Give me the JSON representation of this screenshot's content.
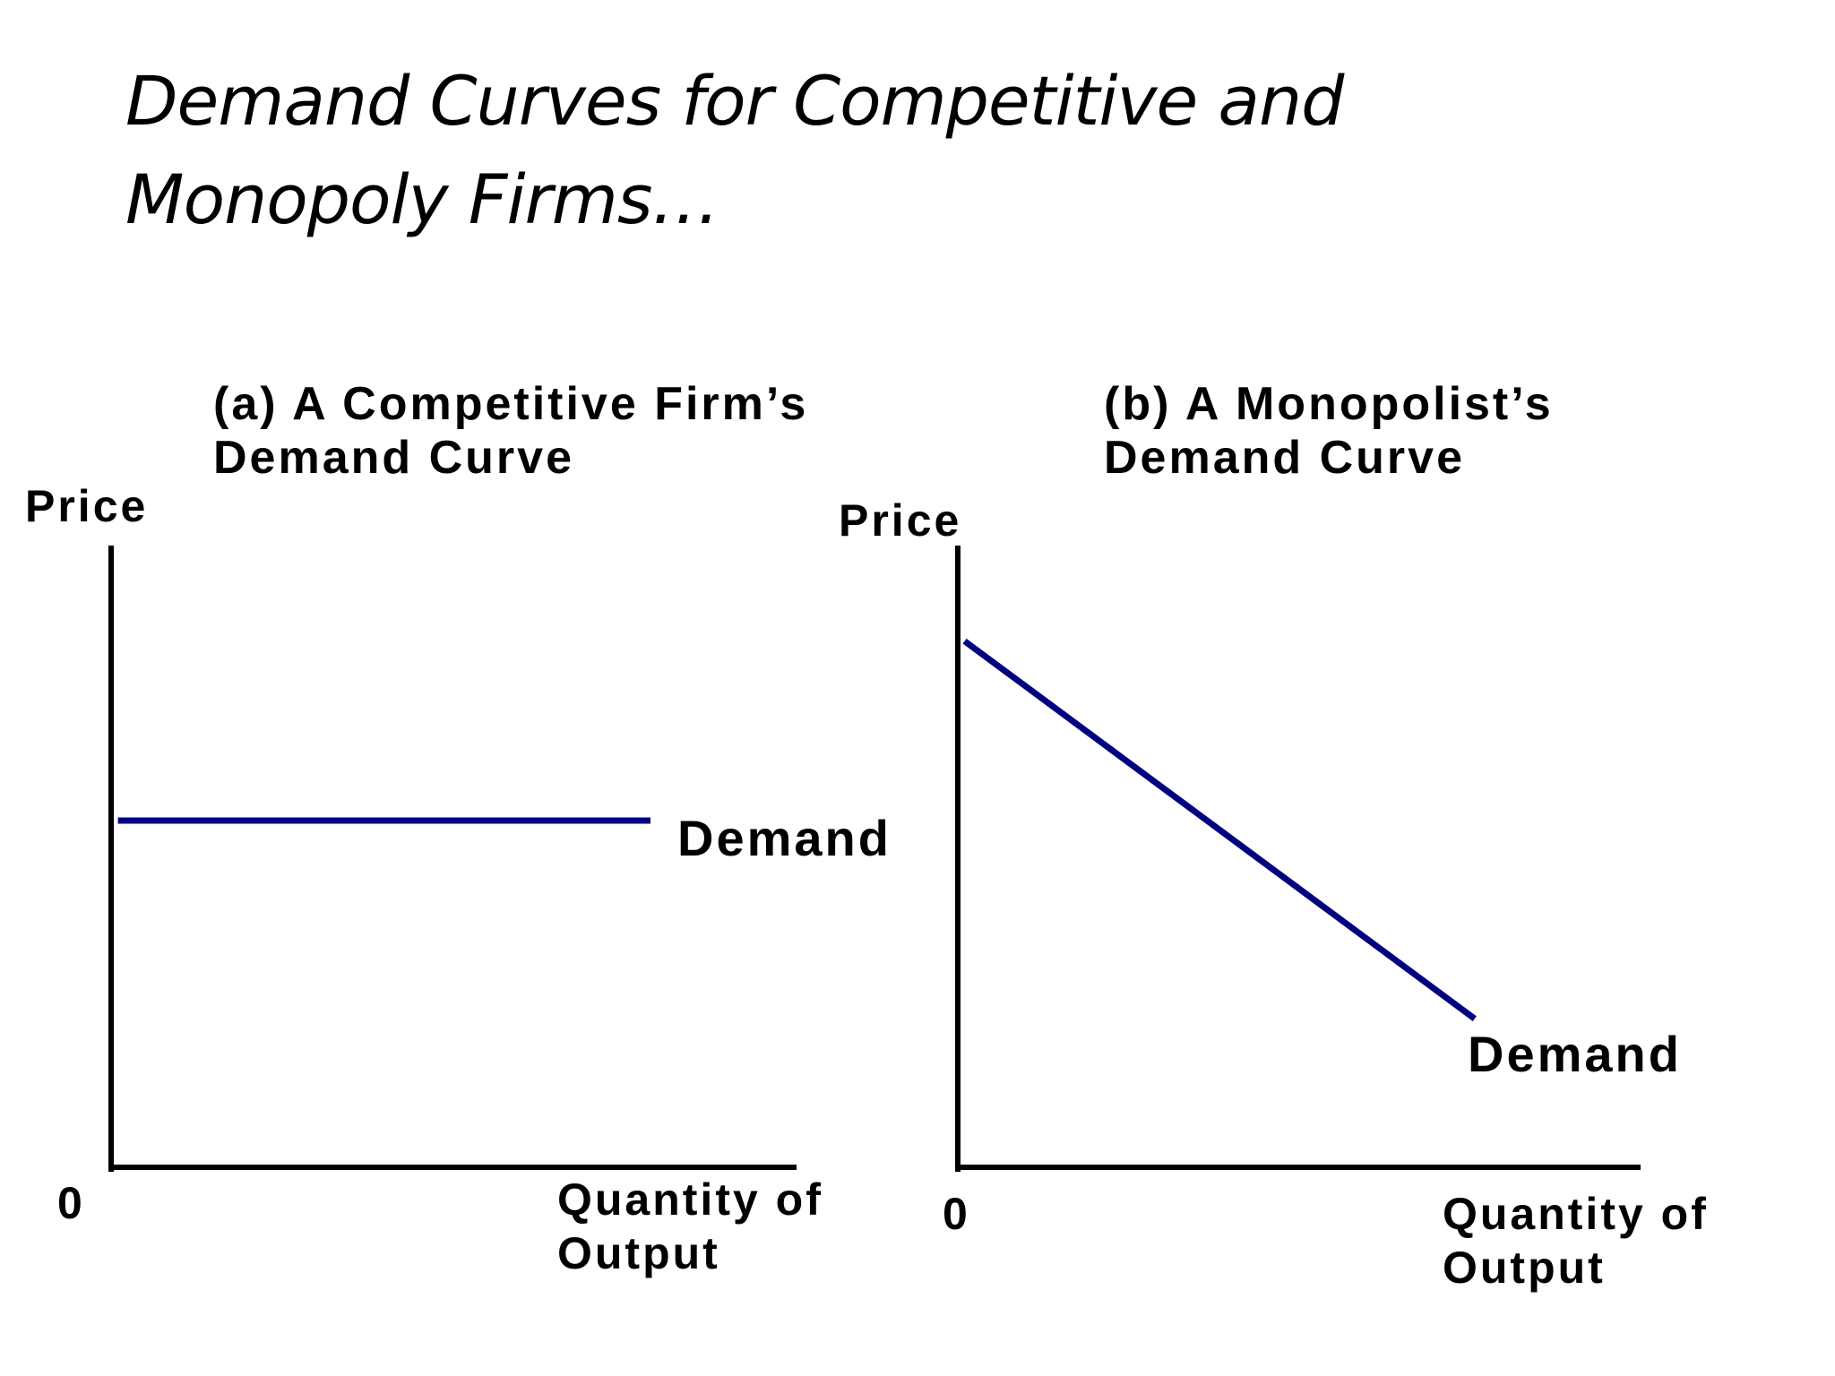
{
  "slide": {
    "title_lines": [
      "Demand Curves for Competitive and",
      "Monopoly Firms…"
    ]
  },
  "colors": {
    "demand": "#000080",
    "axis": "#000000",
    "text": "#000000"
  },
  "chart_data": [
    {
      "type": "line",
      "title_lines": [
        "(a) A Competitive Firm’s",
        "Demand Curve"
      ],
      "ylabel": "Price",
      "xlabel_lines": [
        "Quantity of",
        "Output"
      ],
      "origin_label": "0",
      "xlim": [
        0,
        100
      ],
      "ylim": [
        0,
        100
      ],
      "series": [
        {
          "name": "Demand",
          "x": [
            1,
            79
          ],
          "y": [
            56,
            56
          ]
        }
      ]
    },
    {
      "type": "line",
      "title_lines": [
        "(b) A Monopolist’s",
        "Demand Curve"
      ],
      "ylabel": "Price",
      "xlabel_lines": [
        "Quantity of",
        "Output"
      ],
      "origin_label": "0",
      "xlim": [
        0,
        100
      ],
      "ylim": [
        0,
        100
      ],
      "series": [
        {
          "name": "Demand",
          "x": [
            1,
            76
          ],
          "y": [
            85,
            24
          ]
        }
      ]
    }
  ]
}
